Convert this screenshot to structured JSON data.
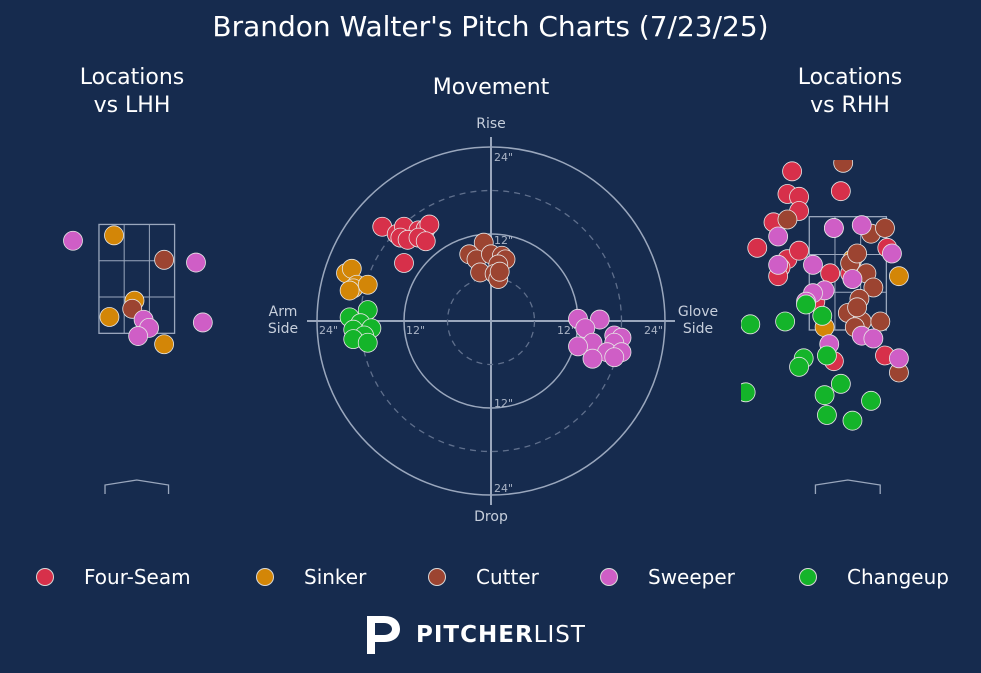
{
  "title": "Brandon Walter's Pitch Charts (7/23/25)",
  "panels": {
    "lhh_title": "Locations\nvs LHH",
    "movement_title": "Movement",
    "rhh_title": "Locations\nvs RHH"
  },
  "movement_labels": {
    "top": "Rise",
    "bottom": "Drop",
    "left": "Arm\nSide",
    "right": "Glove\nSide",
    "ring_12": "12\"",
    "ring_24": "24\""
  },
  "colors": {
    "background": "#162b4e",
    "Four-Seam": "#d7304a",
    "Sinker": "#d38607",
    "Cutter": "#9c4431",
    "Sweeper": "#cf5ec6",
    "Changeup": "#14b42a"
  },
  "legend": [
    {
      "name": "Four-Seam",
      "color": "#d7304a"
    },
    {
      "name": "Sinker",
      "color": "#d38607"
    },
    {
      "name": "Cutter",
      "color": "#9c4431"
    },
    {
      "name": "Sweeper",
      "color": "#cf5ec6"
    },
    {
      "name": "Changeup",
      "color": "#14b42a"
    }
  ],
  "brand": {
    "bold": "PITCHER",
    "light": "LIST",
    "icon": "pitcherlist-logo-icon"
  },
  "chart_data": [
    {
      "type": "scatter",
      "title": "Locations\nvs LHH",
      "x_unit": "ft from plate center (catcher view)",
      "y_unit": "ft above ground",
      "xlim": [
        -2.3,
        2.2
      ],
      "ylim": [
        0.0,
        4.5
      ],
      "strike_zone": {
        "x": [
          -0.83,
          0.83
        ],
        "y": [
          1.5,
          3.5
        ]
      },
      "series": [
        {
          "name": "Sinker",
          "points": [
            [
              -0.5,
              3.3
            ],
            [
              -0.05,
              2.1
            ],
            [
              -0.6,
              1.8
            ],
            [
              0.6,
              1.3
            ]
          ]
        },
        {
          "name": "Cutter",
          "points": [
            [
              0.6,
              2.85
            ],
            [
              -0.1,
              1.95
            ]
          ]
        },
        {
          "name": "Sweeper",
          "points": [
            [
              -1.4,
              3.2
            ],
            [
              1.3,
              2.8
            ],
            [
              0.15,
              1.75
            ],
            [
              0.27,
              1.6
            ],
            [
              0.03,
              1.45
            ],
            [
              1.45,
              1.7
            ]
          ]
        }
      ]
    },
    {
      "type": "scatter",
      "title": "Movement",
      "x_unit": "inches horizontal break",
      "y_unit": "inches induced vertical break",
      "xlim": [
        -24,
        24
      ],
      "ylim": [
        -24,
        24
      ],
      "rings": [
        12,
        24
      ],
      "dashed_rings": [
        6,
        18
      ],
      "series": [
        {
          "name": "Four-Seam",
          "points": [
            [
              -15,
              13
            ],
            [
              -13,
              12
            ],
            [
              -12,
              13
            ],
            [
              -10,
              12.5
            ],
            [
              -9,
              12.7
            ],
            [
              -8.5,
              13.3
            ],
            [
              -12.5,
              11.5
            ],
            [
              -11.5,
              11.2
            ],
            [
              -10,
              11.5
            ],
            [
              -9,
              11
            ],
            [
              -12,
              8
            ]
          ]
        },
        {
          "name": "Sinker",
          "points": [
            [
              -20,
              6.6
            ],
            [
              -19.2,
              7.2
            ],
            [
              -18.5,
              5
            ],
            [
              -19,
              4.5
            ],
            [
              -17,
              5
            ],
            [
              -19.5,
              4.2
            ]
          ]
        },
        {
          "name": "Cutter",
          "points": [
            [
              -1,
              10.8
            ],
            [
              -3,
              9.2
            ],
            [
              -2,
              8.5
            ],
            [
              0,
              9.2
            ],
            [
              1.5,
              9
            ],
            [
              2,
              8.5
            ],
            [
              1,
              7.8
            ],
            [
              -1.5,
              6.7
            ],
            [
              0.5,
              6.5
            ],
            [
              1,
              5.8
            ],
            [
              1.2,
              6.8
            ]
          ]
        },
        {
          "name": "Sweeper",
          "points": [
            [
              12,
              0.3
            ],
            [
              15,
              0.2
            ],
            [
              13,
              -1
            ],
            [
              17,
              -2
            ],
            [
              18,
              -2.3
            ],
            [
              17,
              -3
            ],
            [
              14,
              -3
            ],
            [
              12,
              -3.5
            ],
            [
              16,
              -4.3
            ],
            [
              18,
              -4.3
            ],
            [
              14,
              -5.2
            ],
            [
              17,
              -5
            ]
          ]
        },
        {
          "name": "Changeup",
          "points": [
            [
              -17,
              1.5
            ],
            [
              -19.5,
              0.5
            ],
            [
              -18,
              -0.3
            ],
            [
              -16.5,
              -1
            ],
            [
              -19,
              -1.2
            ],
            [
              -17.5,
              -2
            ],
            [
              -19,
              -2.5
            ],
            [
              -17,
              -3
            ]
          ]
        }
      ]
    },
    {
      "type": "scatter",
      "title": "Locations\nvs RHH",
      "x_unit": "ft from plate center (catcher view)",
      "y_unit": "ft above ground",
      "xlim": [
        -2.3,
        2.2
      ],
      "ylim": [
        0.0,
        4.5
      ],
      "strike_zone": {
        "x": [
          -0.83,
          0.83
        ],
        "y": [
          1.5,
          3.5
        ]
      },
      "series": [
        {
          "name": "Four-Seam",
          "points": [
            [
              -1.2,
              4.3
            ],
            [
              -1.3,
              3.9
            ],
            [
              -1.05,
              3.85
            ],
            [
              -0.15,
              3.95
            ],
            [
              -1.05,
              3.6
            ],
            [
              -1.6,
              3.4
            ],
            [
              -1.95,
              2.95
            ],
            [
              -1.3,
              2.75
            ],
            [
              -1.05,
              2.9
            ],
            [
              -1.45,
              2.6
            ],
            [
              -0.38,
              2.5
            ],
            [
              0.85,
              2.95
            ],
            [
              0.1,
              2.4
            ],
            [
              0.05,
              2.5
            ],
            [
              -1.5,
              2.45
            ],
            [
              0.8,
              1.05
            ],
            [
              -0.3,
              0.95
            ],
            [
              -0.7,
              2.0
            ]
          ]
        },
        {
          "name": "Sinker",
          "points": [
            [
              0.1,
              2.75
            ],
            [
              1.1,
              2.45
            ],
            [
              -0.5,
              1.55
            ]
          ]
        },
        {
          "name": "Cutter",
          "points": [
            [
              -0.1,
              4.45
            ],
            [
              -1.3,
              3.45
            ],
            [
              -0.3,
              3.3
            ],
            [
              0.5,
              3.2
            ],
            [
              0.8,
              3.3
            ],
            [
              0.05,
              2.68
            ],
            [
              0.2,
              2.85
            ],
            [
              0.4,
              2.5
            ],
            [
              0.55,
              2.25
            ],
            [
              0.25,
              2.05
            ],
            [
              0.0,
              1.8
            ],
            [
              0.3,
              1.65
            ],
            [
              0.2,
              1.9
            ],
            [
              0.15,
              1.55
            ],
            [
              0.7,
              1.65
            ],
            [
              1.1,
              0.75
            ]
          ]
        },
        {
          "name": "Sweeper",
          "points": [
            [
              0.3,
              3.35
            ],
            [
              -0.3,
              3.3
            ],
            [
              -1.5,
              3.15
            ],
            [
              0.95,
              2.85
            ],
            [
              -0.75,
              2.65
            ],
            [
              -1.5,
              2.65
            ],
            [
              0.1,
              2.4
            ],
            [
              -0.5,
              2.2
            ],
            [
              -0.75,
              2.15
            ],
            [
              -0.9,
              2.0
            ],
            [
              0.3,
              1.4
            ],
            [
              0.55,
              1.35
            ],
            [
              -0.4,
              1.25
            ],
            [
              1.1,
              1.0
            ]
          ]
        },
        {
          "name": "Changeup",
          "points": [
            [
              -2.1,
              1.6
            ],
            [
              -1.35,
              1.65
            ],
            [
              -0.9,
              1.95
            ],
            [
              -0.55,
              1.75
            ],
            [
              -0.95,
              1.0
            ],
            [
              -1.05,
              0.85
            ],
            [
              -0.45,
              1.05
            ],
            [
              -0.15,
              0.55
            ],
            [
              -0.5,
              0.35
            ],
            [
              -2.2,
              0.4
            ],
            [
              0.5,
              0.25
            ],
            [
              -0.45,
              0.0
            ],
            [
              0.1,
              -0.1
            ]
          ]
        }
      ]
    }
  ]
}
